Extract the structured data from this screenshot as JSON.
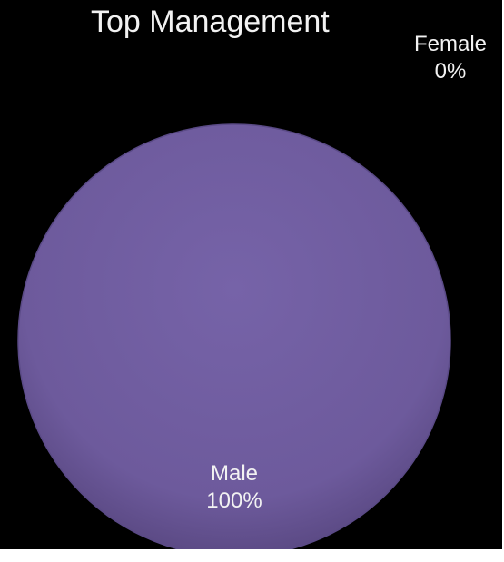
{
  "chart_data": {
    "type": "pie",
    "title": "Top Management",
    "slices": [
      {
        "label": "Male",
        "value": 100,
        "value_label": "100%",
        "color": "#6f5a9e"
      },
      {
        "label": "Female",
        "value": 0,
        "value_label": "0%",
        "color": "#6f5a9e"
      }
    ],
    "background": "#000000",
    "text_color": "#f2f2f2"
  }
}
